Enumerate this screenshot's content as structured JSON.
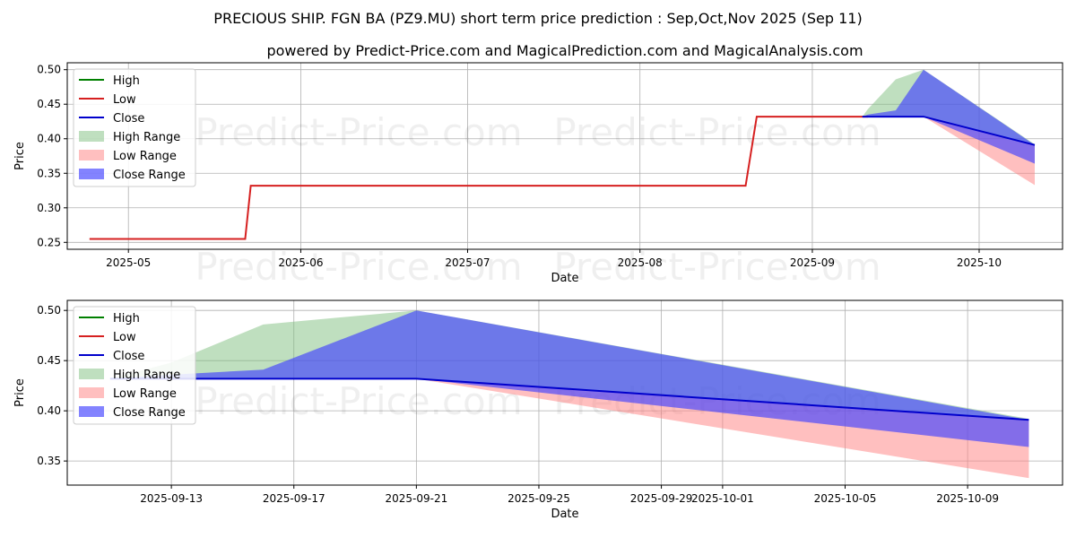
{
  "title": "PRECIOUS SHIP. FGN BA (PZ9.MU) short term price prediction : Sep,Oct,Nov 2025 (Sep 11)",
  "subtitle": "powered by Predict-Price.com and MagicalPrediction.com and MagicalAnalysis.com",
  "watermark": "Predict-Price.com",
  "colors": {
    "high": "#008000",
    "low": "#d62020",
    "close": "#0000cc",
    "high_range": "#7fbf7f",
    "low_range": "#ff8080",
    "close_range": "#4040ff"
  },
  "legend": [
    "High",
    "Low",
    "Close",
    "High Range",
    "Low Range",
    "Close Range"
  ],
  "chart_data": [
    {
      "type": "line",
      "xlabel": "Date",
      "ylabel": "Price",
      "xlim": [
        "2025-04-20",
        "2025-10-16"
      ],
      "ylim": [
        0.24,
        0.51
      ],
      "xticks": [
        {
          "date": "2025-05-01",
          "label": "2025-05"
        },
        {
          "date": "2025-06-01",
          "label": "2025-06"
        },
        {
          "date": "2025-07-01",
          "label": "2025-07"
        },
        {
          "date": "2025-08-01",
          "label": "2025-08"
        },
        {
          "date": "2025-09-01",
          "label": "2025-09"
        },
        {
          "date": "2025-10-01",
          "label": "2025-10"
        }
      ],
      "yticks": [
        0.25,
        0.3,
        0.35,
        0.4,
        0.45,
        0.5
      ],
      "ytick_labels": [
        "0.25",
        "0.30",
        "0.35",
        "0.40",
        "0.45",
        "0.50"
      ],
      "low_series": [
        [
          "2025-04-24",
          0.255
        ],
        [
          "2025-05-22",
          0.255
        ],
        [
          "2025-05-23",
          0.332
        ],
        [
          "2025-08-20",
          0.332
        ],
        [
          "2025-08-22",
          0.432
        ],
        [
          "2025-09-11",
          0.432
        ]
      ],
      "high_range": {
        "x": [
          "2025-09-10",
          "2025-09-11",
          "2025-09-16",
          "2025-09-21",
          "2025-10-11"
        ],
        "upper": [
          0.432,
          0.443,
          0.486,
          0.5,
          0.392
        ],
        "lower": [
          0.432,
          0.432,
          0.432,
          0.432,
          0.391
        ]
      },
      "low_range": {
        "x": [
          "2025-09-21",
          "2025-10-11"
        ],
        "upper": [
          0.432,
          0.391
        ],
        "lower": [
          0.432,
          0.333
        ]
      },
      "close_range": {
        "x": [
          "2025-09-10",
          "2025-09-11",
          "2025-09-16",
          "2025-09-21",
          "2025-10-11"
        ],
        "upper": [
          0.432,
          0.435,
          0.441,
          0.5,
          0.391
        ],
        "lower": [
          0.432,
          0.432,
          0.432,
          0.432,
          0.364
        ]
      },
      "close_series": [
        [
          "2025-09-10",
          0.432
        ],
        [
          "2025-09-21",
          0.432
        ],
        [
          "2025-10-11",
          0.391
        ]
      ]
    },
    {
      "type": "line",
      "xlabel": "Date",
      "ylabel": "Price",
      "xlim": [
        "2025-09-09.6",
        "2025-10-12.1"
      ],
      "ylim": [
        0.326,
        0.51
      ],
      "xticks": [
        {
          "date": "2025-09-13",
          "label": "2025-09-13"
        },
        {
          "date": "2025-09-17",
          "label": "2025-09-17"
        },
        {
          "date": "2025-09-21",
          "label": "2025-09-21"
        },
        {
          "date": "2025-09-25",
          "label": "2025-09-25"
        },
        {
          "date": "2025-09-29",
          "label": "2025-09-29"
        },
        {
          "date": "2025-10-01",
          "label": "2025-10-01"
        },
        {
          "date": "2025-10-05",
          "label": "2025-10-05"
        },
        {
          "date": "2025-10-09",
          "label": "2025-10-09"
        }
      ],
      "yticks": [
        0.35,
        0.4,
        0.45,
        0.5
      ],
      "ytick_labels": [
        "0.35",
        "0.40",
        "0.45",
        "0.50"
      ],
      "high_range": {
        "x": [
          "2025-09-11",
          "2025-09-13",
          "2025-09-16",
          "2025-09-21",
          "2025-10-11"
        ],
        "upper": [
          0.432,
          0.448,
          0.486,
          0.5,
          0.392
        ],
        "lower": [
          0.432,
          0.432,
          0.432,
          0.432,
          0.391
        ]
      },
      "low_range": {
        "x": [
          "2025-09-21",
          "2025-10-11"
        ],
        "upper": [
          0.432,
          0.391
        ],
        "lower": [
          0.432,
          0.333
        ]
      },
      "close_range": {
        "x": [
          "2025-09-11",
          "2025-09-13",
          "2025-09-16",
          "2025-09-21",
          "2025-10-11"
        ],
        "upper": [
          0.432,
          0.436,
          0.441,
          0.5,
          0.391
        ],
        "lower": [
          0.432,
          0.432,
          0.432,
          0.432,
          0.364
        ]
      },
      "close_series": [
        [
          "2025-09-11",
          0.432
        ],
        [
          "2025-09-21",
          0.432
        ],
        [
          "2025-10-11",
          0.391
        ]
      ]
    }
  ]
}
